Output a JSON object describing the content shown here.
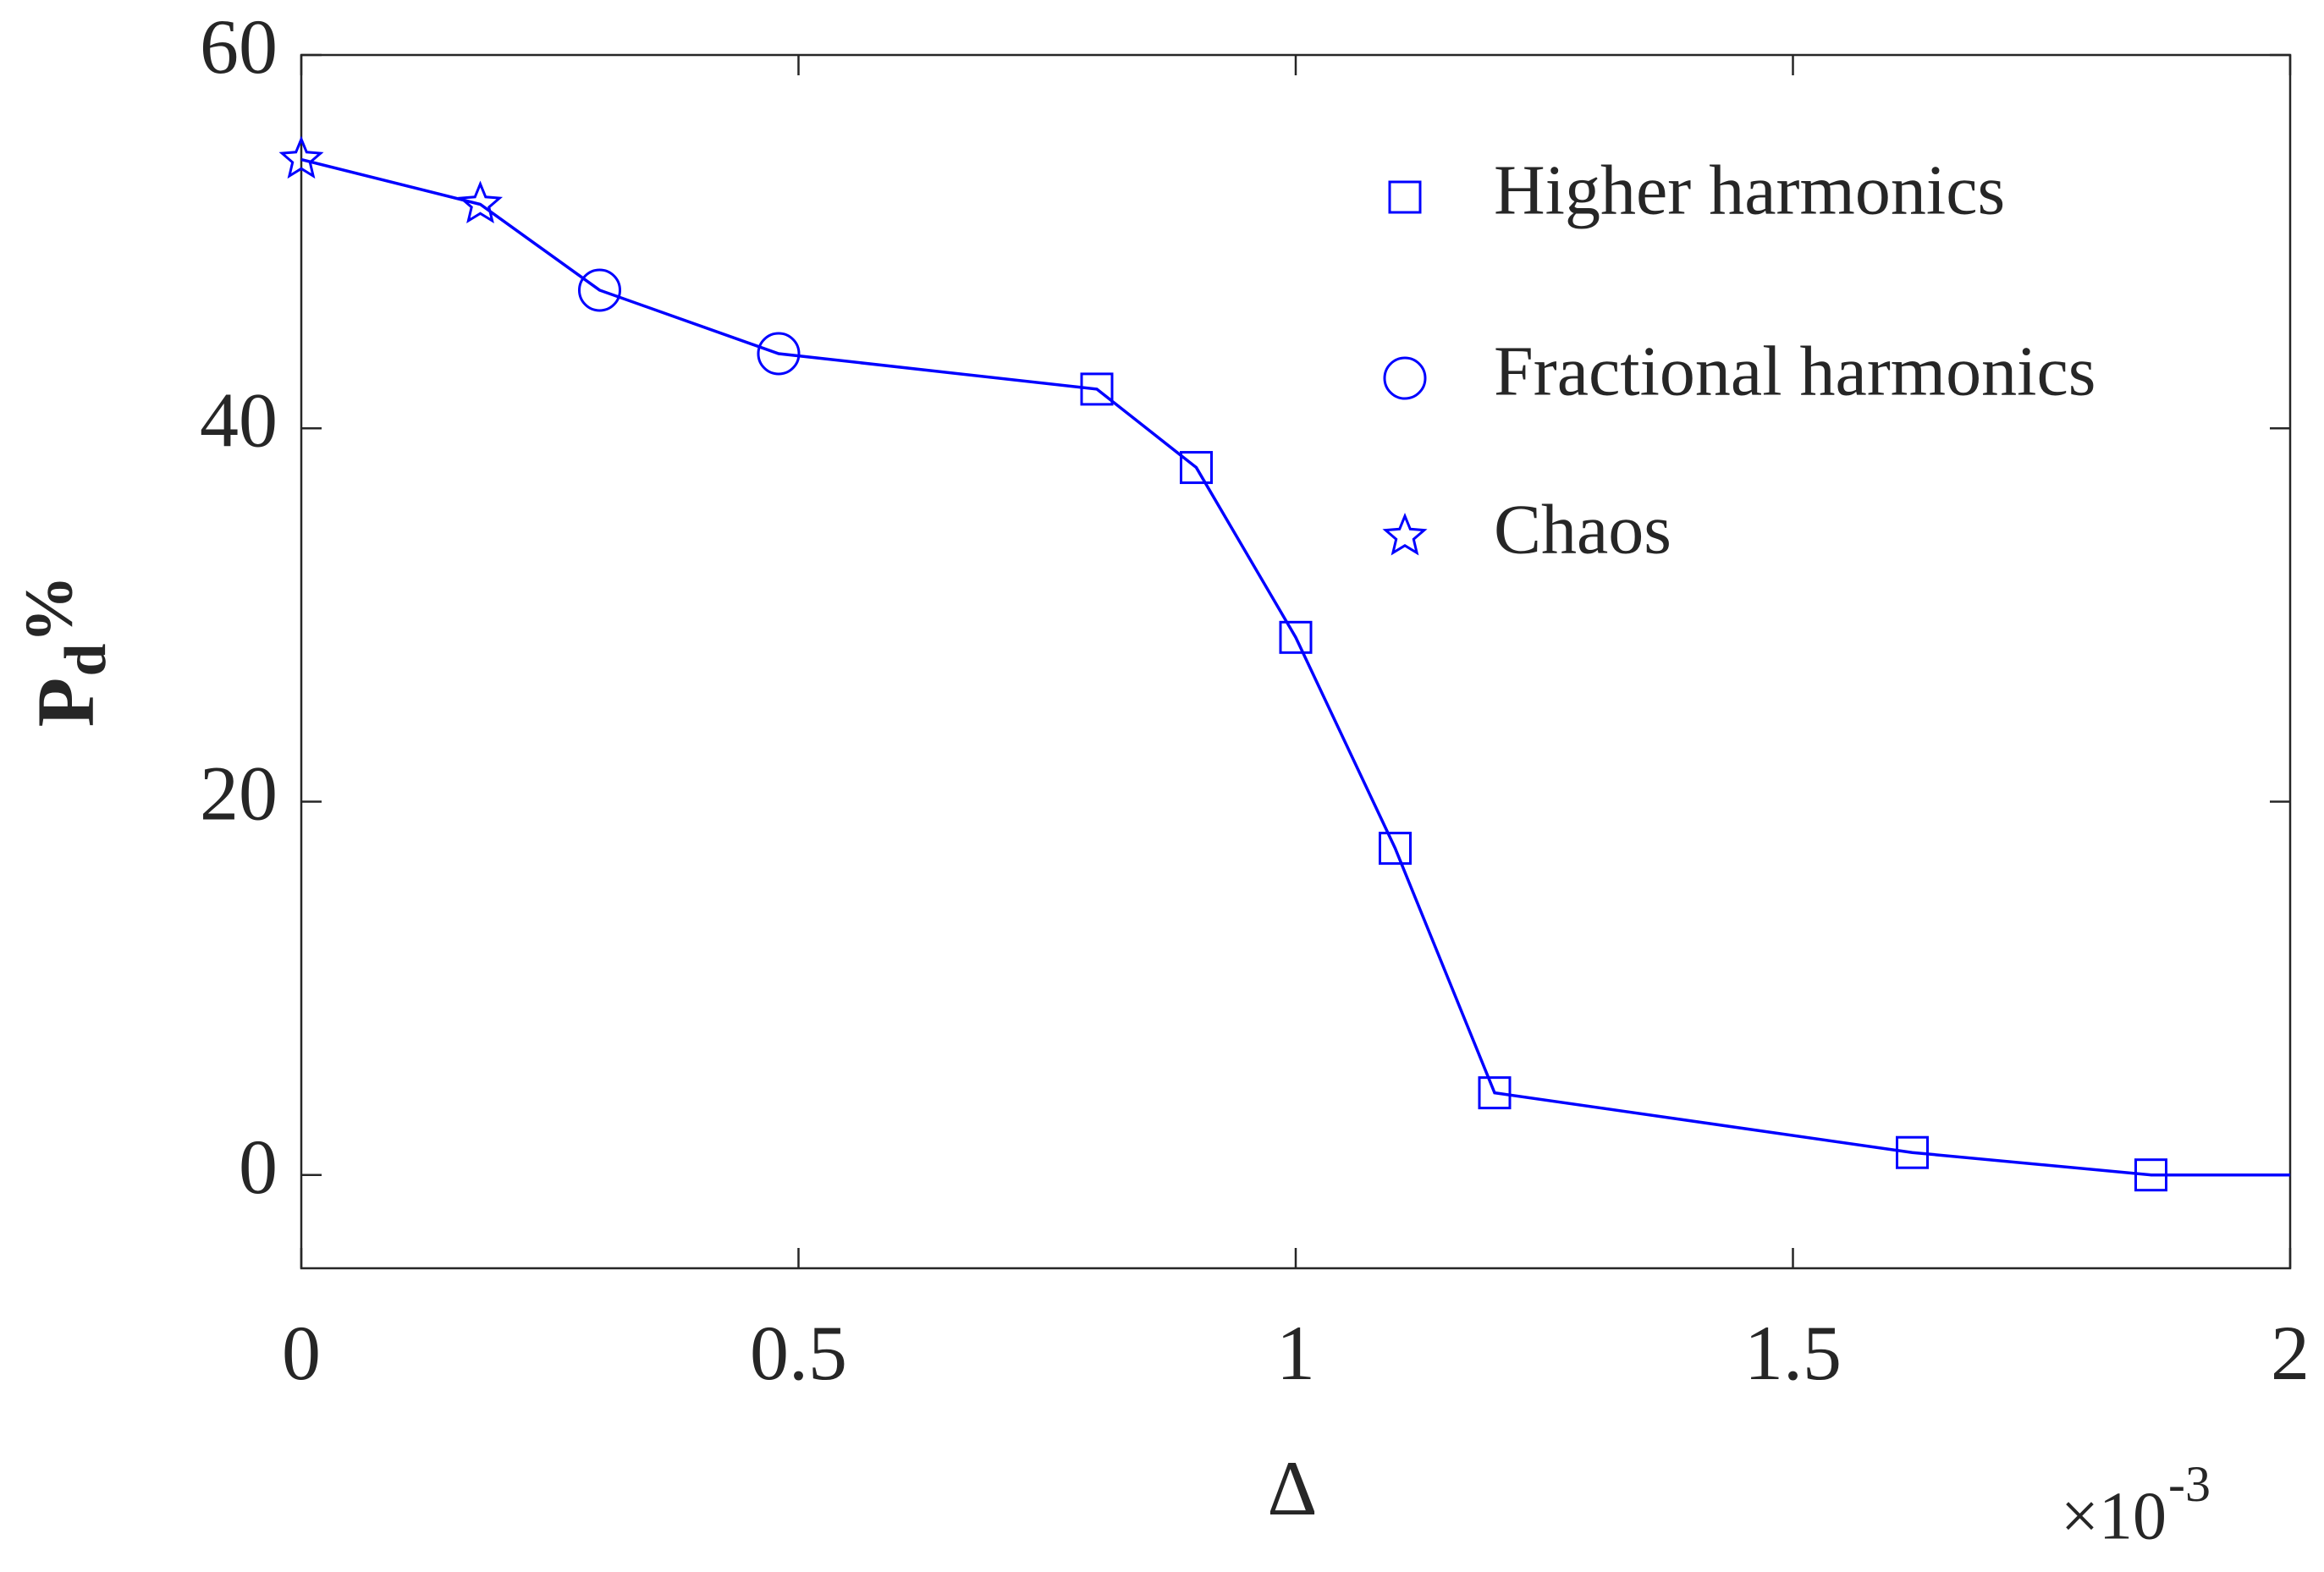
{
  "chart_data": {
    "type": "line",
    "x": [
      0,
      0.18,
      0.3,
      0.48,
      0.8,
      0.9,
      1.0,
      1.1,
      1.2,
      1.62,
      1.86,
      2.0
    ],
    "values": [
      54.4,
      52.0,
      47.4,
      44.0,
      42.1,
      37.9,
      28.8,
      17.5,
      4.4,
      1.2,
      0,
      0
    ],
    "markers": [
      "star",
      "star",
      "circle",
      "circle",
      "square",
      "square",
      "square",
      "square",
      "square",
      "square",
      "square",
      null
    ],
    "color": "#0000ff",
    "legend": [
      {
        "name": "Higher harmonics",
        "marker": "square"
      },
      {
        "name": "Fractional harmonics",
        "marker": "circle"
      },
      {
        "name": "Chaos",
        "marker": "star"
      }
    ],
    "legend_position": "upper right",
    "xlabel": "Δ",
    "x_multiplier": "×10",
    "x_multiplier_exponent": "-3",
    "ylabel": "P",
    "ylabel_subscript": "d",
    "ylabel_suffix": "%",
    "xlim": [
      0,
      2
    ],
    "xticks": [
      0,
      0.5,
      1,
      1.5,
      2
    ],
    "ylim": [
      -5,
      60
    ],
    "yticks": [
      0,
      20,
      40,
      60
    ]
  }
}
